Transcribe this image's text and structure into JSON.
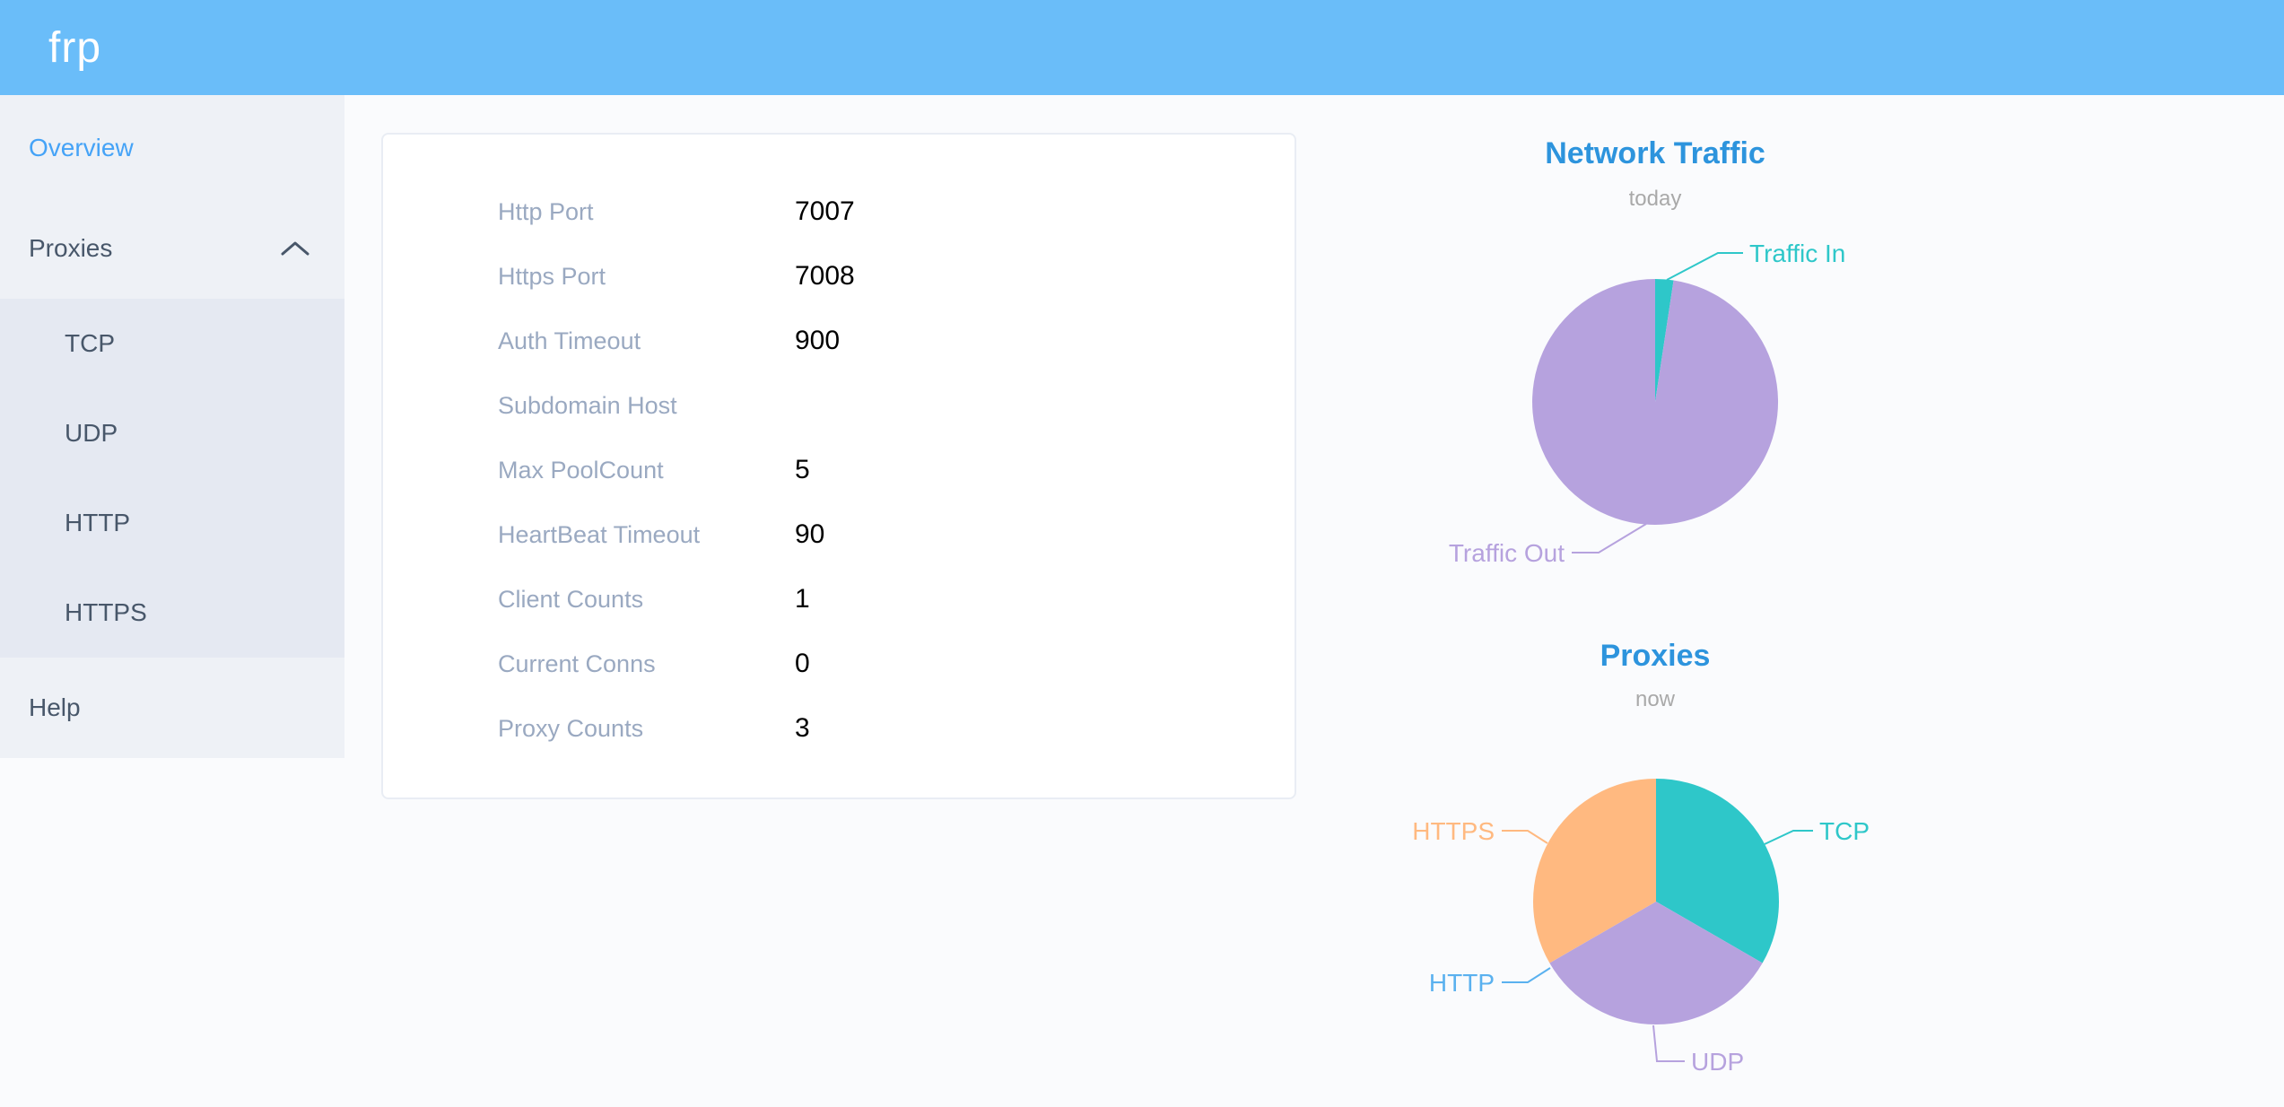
{
  "header": {
    "logo_text": "frp"
  },
  "sidebar": {
    "overview": {
      "label": "Overview",
      "active": true
    },
    "proxies": {
      "label": "Proxies",
      "expanded": true,
      "children": [
        "TCP",
        "UDP",
        "HTTP",
        "HTTPS"
      ]
    },
    "help": {
      "label": "Help"
    }
  },
  "server_info": {
    "rows": [
      {
        "label": "Http Port",
        "value": "7007"
      },
      {
        "label": "Https Port",
        "value": "7008"
      },
      {
        "label": "Auth Timeout",
        "value": "900"
      },
      {
        "label": "Subdomain Host",
        "value": ""
      },
      {
        "label": "Max PoolCount",
        "value": "5"
      },
      {
        "label": "HeartBeat Timeout",
        "value": "90"
      },
      {
        "label": "Client Counts",
        "value": "1"
      },
      {
        "label": "Current Conns",
        "value": "0"
      },
      {
        "label": "Proxy Counts",
        "value": "3"
      }
    ]
  },
  "colors": {
    "header_bg": "#6abdf9",
    "active_menu": "#45a3f7",
    "chart_title": "#2d94dd",
    "teal": "#2ec7c9",
    "purple": "#b6a2de",
    "light_blue": "#5ab1ef",
    "orange": "#ffb980"
  },
  "chart_data": [
    {
      "type": "pie",
      "title": "Network Traffic",
      "subtitle": "today",
      "legend_position": "callout-labels",
      "value_labels_shown": false,
      "note": "no numeric values shown on chart; percentages estimated from arc angles",
      "series": [
        {
          "name": "Traffic In",
          "value": 2.4,
          "color": "#2ec7c9"
        },
        {
          "name": "Traffic Out",
          "value": 97.6,
          "color": "#b6a2de"
        }
      ]
    },
    {
      "type": "pie",
      "title": "Proxies",
      "subtitle": "now",
      "legend_position": "callout-labels",
      "value_labels_shown": false,
      "note": "three equal slices (1 each of TCP/UDP/HTTPS); HTTP slice has zero size but keeps its callout label",
      "series": [
        {
          "name": "TCP",
          "value": 1,
          "color": "#2ec7c9"
        },
        {
          "name": "UDP",
          "value": 1,
          "color": "#b6a2de"
        },
        {
          "name": "HTTP",
          "value": 0,
          "color": "#5ab1ef"
        },
        {
          "name": "HTTPS",
          "value": 1,
          "color": "#ffb980"
        }
      ]
    }
  ]
}
